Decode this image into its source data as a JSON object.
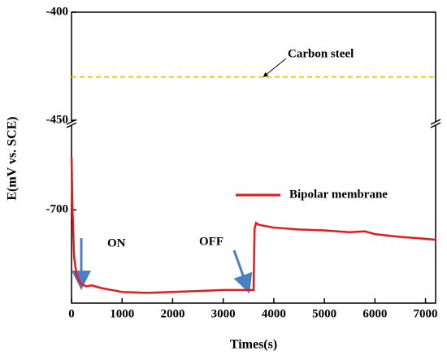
{
  "chart_data": [
    {
      "type": "line",
      "xlim": [
        0,
        7200
      ],
      "ylim": [
        -450,
        -400
      ],
      "yticks": [
        -450,
        -400
      ],
      "series": [
        {
          "name": "Carbon steel",
          "color": "#e6d21e",
          "x": [
            0,
            7200
          ],
          "values": [
            -430,
            -430
          ]
        }
      ]
    },
    {
      "type": "line",
      "x_label": "Times(s)",
      "y_label": "E(mV vs. SCE)",
      "xlim": [
        0,
        7200
      ],
      "xticks": [
        0,
        1000,
        2000,
        3000,
        4000,
        5000,
        6000,
        7000
      ],
      "ylim": [
        -750,
        -655
      ],
      "yticks": [
        -700
      ],
      "annotations": [
        "ON",
        "OFF"
      ],
      "series": [
        {
          "name": "Bipolar membrane",
          "color": "#e8191c",
          "x": [
            0,
            20,
            50,
            100,
            150,
            200,
            300,
            400,
            600,
            800,
            1000,
            1500,
            2000,
            2500,
            3000,
            3400,
            3600,
            3620,
            3650,
            3700,
            4000,
            4500,
            5000,
            5500,
            5800,
            6000,
            6500,
            7000,
            7200
          ],
          "values": [
            -672,
            -700,
            -725,
            -735,
            -738,
            -740,
            -741,
            -740.5,
            -742,
            -743,
            -744,
            -744.5,
            -744,
            -743.5,
            -743,
            -743,
            -743,
            -710,
            -707,
            -708,
            -709.5,
            -710.5,
            -711,
            -712,
            -711.5,
            -713,
            -714.5,
            -715.5,
            -716
          ]
        }
      ]
    }
  ]
}
